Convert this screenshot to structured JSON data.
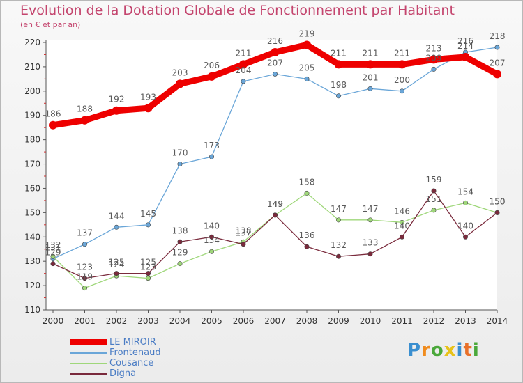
{
  "title": "Evolution de la Dotation Globale de Fonctionnement par Habitant",
  "subtitle": "(en € et par an)",
  "brand": {
    "text": "Proxiti",
    "letter_colors": [
      "#3a8fd0",
      "#f08c1e",
      "#4aa83a",
      "#e8c21a",
      "#3a8fd0",
      "#e8702a",
      "#4aa83a"
    ]
  },
  "chart_data": {
    "type": "line",
    "title": "Evolution de la Dotation Globale de Fonctionnement par Habitant",
    "subtitle": "(en € et par an)",
    "x": [
      2000,
      2001,
      2002,
      2003,
      2004,
      2005,
      2006,
      2007,
      2008,
      2009,
      2010,
      2011,
      2012,
      2013,
      2014
    ],
    "ylim": [
      110,
      220
    ],
    "yticks": [
      110,
      120,
      130,
      140,
      150,
      160,
      170,
      180,
      190,
      200,
      210,
      220
    ],
    "grid": false,
    "legend_position": "bottom-left",
    "series": [
      {
        "name": "LE MIROIR",
        "color": "#ee0000",
        "style": "bold",
        "values": [
          186,
          188,
          192,
          193,
          203,
          206,
          211,
          216,
          219,
          211,
          211,
          211,
          213,
          214,
          207
        ]
      },
      {
        "name": "Frontenaud",
        "color": "#6aa6d8",
        "style": "thin",
        "values": [
          131,
          137,
          144,
          145,
          170,
          173,
          204,
          207,
          205,
          198,
          201,
          200,
          209,
          216,
          218
        ]
      },
      {
        "name": "Cousance",
        "color": "#9fd77a",
        "style": "thin",
        "values": [
          132,
          119,
          124,
          123,
          129,
          134,
          138,
          149,
          158,
          147,
          147,
          146,
          151,
          154,
          150
        ]
      },
      {
        "name": "Digna",
        "color": "#7a2a3c",
        "style": "thin",
        "values": [
          129,
          123,
          125,
          125,
          138,
          140,
          137,
          149,
          136,
          132,
          133,
          140,
          159,
          140,
          150
        ]
      }
    ]
  }
}
